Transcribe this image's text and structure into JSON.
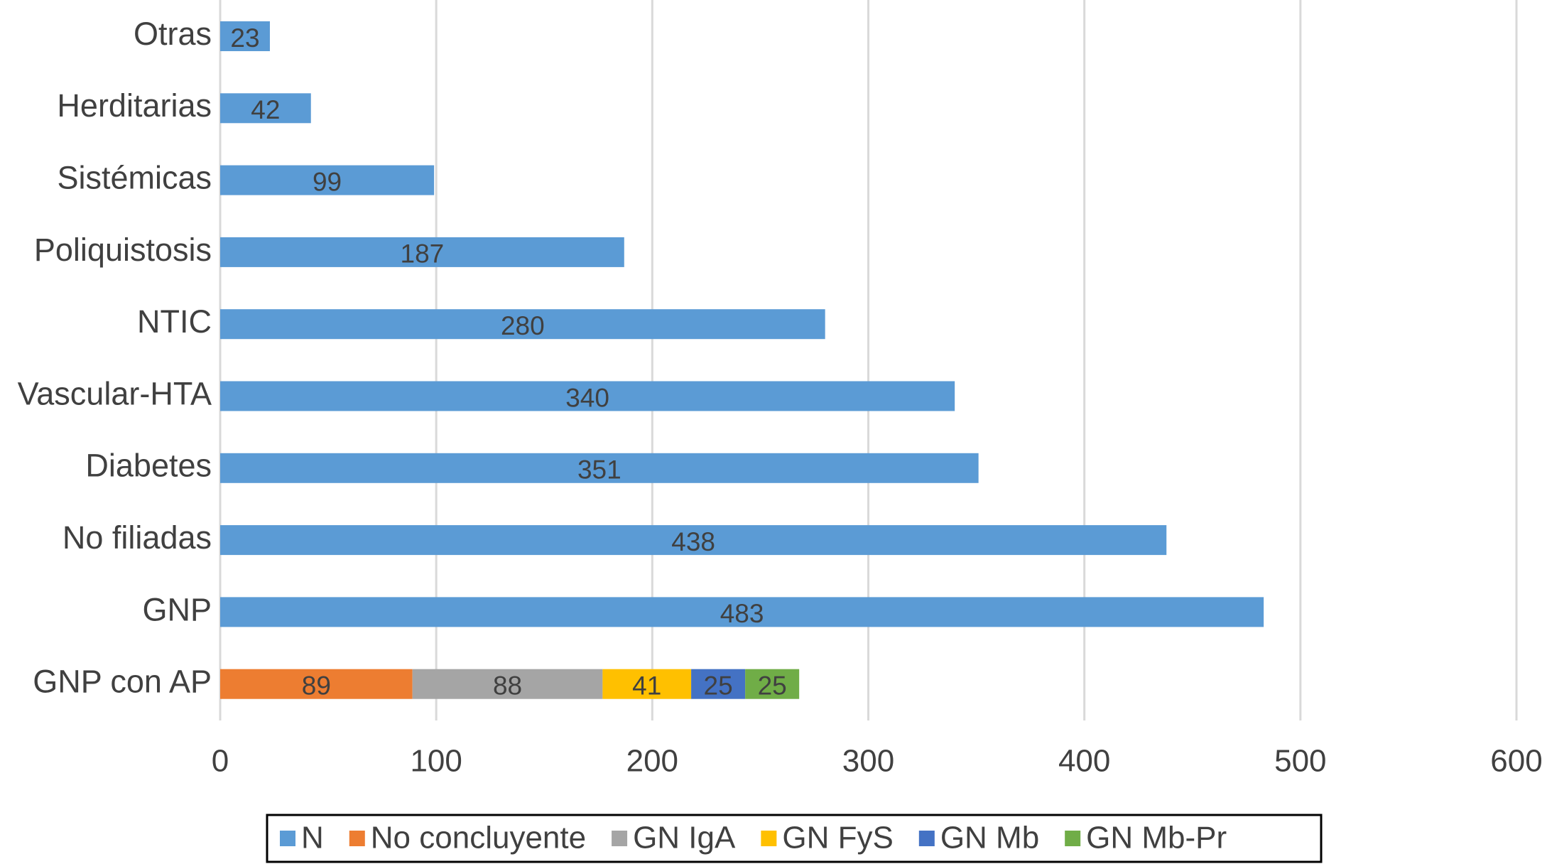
{
  "chart_data": {
    "type": "stacked-hbar",
    "categories": [
      "Otras",
      "Herditarias",
      "Sistémicas",
      "Poliquistosis",
      "NTIC",
      "Vascular-HTA",
      "Diabetes",
      "No filiadas",
      "GNP",
      "GNP con AP"
    ],
    "series": [
      {
        "name": "N",
        "color": "#5b9bd5",
        "values": [
          23,
          42,
          99,
          187,
          280,
          340,
          351,
          438,
          483,
          null
        ]
      },
      {
        "name": "No concluyente",
        "color": "#ed7d31",
        "values": [
          null,
          null,
          null,
          null,
          null,
          null,
          null,
          null,
          null,
          89
        ]
      },
      {
        "name": "GN IgA",
        "color": "#a5a5a5",
        "values": [
          null,
          null,
          null,
          null,
          null,
          null,
          null,
          null,
          null,
          88
        ]
      },
      {
        "name": "GN FyS",
        "color": "#ffc000",
        "values": [
          null,
          null,
          null,
          null,
          null,
          null,
          null,
          null,
          null,
          41
        ]
      },
      {
        "name": "GN Mb",
        "color": "#4472c4",
        "values": [
          null,
          null,
          null,
          null,
          null,
          null,
          null,
          null,
          null,
          25
        ]
      },
      {
        "name": "GN Mb-Pr",
        "color": "#70ad47",
        "values": [
          null,
          null,
          null,
          null,
          null,
          null,
          null,
          null,
          null,
          25
        ]
      }
    ],
    "xlim": [
      0,
      600
    ],
    "xticks": [
      0,
      100,
      200,
      300,
      400,
      500,
      600
    ],
    "grid": true,
    "legend": "bottom"
  }
}
